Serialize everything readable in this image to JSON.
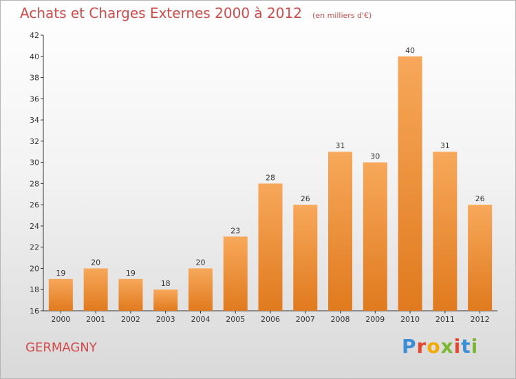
{
  "header": {
    "title": "Achats et Charges Externes 2000 à 2012",
    "unit": "(en milliers d'€)"
  },
  "footer": {
    "commune": "GERMAGNY",
    "brand": "Proxiti"
  },
  "colors": {
    "title": "#d14a4a",
    "bar_light": "#f7a85a",
    "bar_dark": "#e07a1e",
    "brand_letters": [
      "#3b8fd6",
      "#e8452e",
      "#f2a900",
      "#7ab733",
      "#e8452e",
      "#3b8fd6",
      "#7ab733"
    ]
  },
  "chart_data": {
    "type": "bar",
    "categories": [
      "2000",
      "2001",
      "2002",
      "2003",
      "2004",
      "2005",
      "2006",
      "2007",
      "2008",
      "2009",
      "2010",
      "2011",
      "2012"
    ],
    "values": [
      19,
      20,
      19,
      18,
      20,
      23,
      28,
      26,
      31,
      30,
      40,
      31,
      26
    ],
    "title": "Achats et Charges Externes 2000 à 2012",
    "ylim": [
      16,
      42
    ],
    "yticks": [
      16,
      18,
      20,
      22,
      24,
      26,
      28,
      30,
      32,
      34,
      36,
      38,
      40,
      42
    ],
    "grid": false,
    "data_labels": true
  }
}
